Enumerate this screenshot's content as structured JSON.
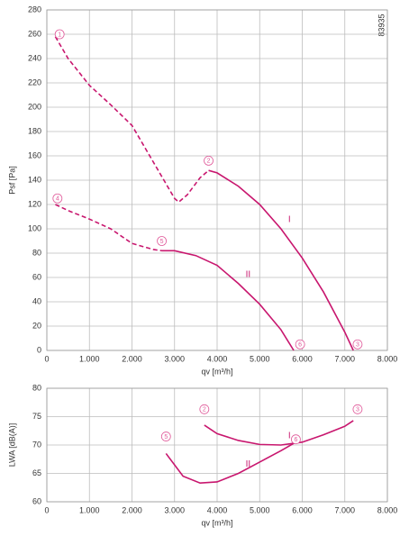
{
  "code": "83935",
  "chart_data": [
    {
      "type": "line",
      "x_label": "qv [m³/h]",
      "y_label": "Psf [Pa]",
      "xlim": [
        0,
        8000
      ],
      "ylim": [
        0,
        280
      ],
      "xticks": [
        0,
        {
          "value": 1000,
          "label": "1.000"
        },
        {
          "value": 2000,
          "label": "2.000"
        },
        {
          "value": 3000,
          "label": "3.000"
        },
        {
          "value": 4000,
          "label": "4.000"
        },
        {
          "value": 5000,
          "label": "5.000"
        },
        {
          "value": 6000,
          "label": "6.000"
        },
        {
          "value": 7000,
          "label": "7.000"
        },
        {
          "value": 8000,
          "label": "8.000"
        }
      ],
      "yticks": [
        0,
        20,
        40,
        60,
        80,
        100,
        120,
        140,
        160,
        180,
        200,
        220,
        240,
        260,
        280
      ],
      "grid": true,
      "color": "#c8166e",
      "series": [
        {
          "dash": true,
          "x": [
            200,
            500,
            1000,
            1500,
            2000,
            2500,
            3000,
            3100,
            3300,
            3600,
            3800
          ],
          "values": [
            258,
            240,
            218,
            202,
            185,
            155,
            125,
            122,
            128,
            142,
            148
          ]
        },
        {
          "name": "I",
          "x": [
            3800,
            4000,
            4500,
            5000,
            5500,
            6000,
            6500,
            7000,
            7200
          ],
          "values": [
            148,
            146,
            135,
            120,
            100,
            76,
            48,
            15,
            0
          ]
        },
        {
          "dash": true,
          "x": [
            200,
            500,
            1000,
            1500,
            2000,
            2500,
            2700
          ],
          "values": [
            120,
            115,
            108,
            100,
            88,
            83,
            82
          ]
        },
        {
          "name": "II",
          "x": [
            2700,
            3000,
            3500,
            4000,
            4500,
            5000,
            5500,
            5800
          ],
          "values": [
            82,
            82,
            78,
            70,
            55,
            38,
            17,
            0
          ]
        }
      ],
      "points": [
        {
          "label": "1",
          "x": 300,
          "y": 260
        },
        {
          "label": "2",
          "x": 3800,
          "y": 156
        },
        {
          "label": "3",
          "x": 7300,
          "y": 5
        },
        {
          "label": "4",
          "x": 250,
          "y": 125
        },
        {
          "label": "5",
          "x": 2700,
          "y": 90
        },
        {
          "label": "6",
          "x": 5950,
          "y": 5
        }
      ]
    },
    {
      "type": "line",
      "x_label": "qv [m³/h]",
      "y_label": "LWA [dB(A)]",
      "xlim": [
        0,
        8000
      ],
      "ylim": [
        60,
        80
      ],
      "xticks": [
        0,
        {
          "value": 1000,
          "label": "1.000"
        },
        {
          "value": 2000,
          "label": "2.000"
        },
        {
          "value": 3000,
          "label": "3.000"
        },
        {
          "value": 4000,
          "label": "4.000"
        },
        {
          "value": 5000,
          "label": "5.000"
        },
        {
          "value": 6000,
          "label": "6.000"
        },
        {
          "value": 7000,
          "label": "7.000"
        },
        {
          "value": 8000,
          "label": "8.000"
        }
      ],
      "yticks": [
        60,
        65,
        70,
        75,
        80
      ],
      "grid": true,
      "color": "#c8166e",
      "series": [
        {
          "name": "I",
          "x": [
            3700,
            4000,
            4500,
            5000,
            5500,
            6000,
            6500,
            7000,
            7200
          ],
          "values": [
            73.5,
            72,
            70.8,
            70.1,
            70,
            70.5,
            71.8,
            73.3,
            74.3
          ]
        },
        {
          "name": "II",
          "x": [
            2800,
            3200,
            3600,
            4000,
            4500,
            5000,
            5500,
            5850
          ],
          "values": [
            68.5,
            64.5,
            63.3,
            63.5,
            65,
            67,
            69,
            70.5
          ]
        }
      ],
      "points": [
        {
          "label": "5",
          "x": 2800,
          "y": 71.5
        },
        {
          "label": "2",
          "x": 3700,
          "y": 76.3
        },
        {
          "label": "3",
          "x": 7300,
          "y": 76.3
        },
        {
          "label": "6",
          "x": 5850,
          "y": 71
        }
      ]
    }
  ]
}
